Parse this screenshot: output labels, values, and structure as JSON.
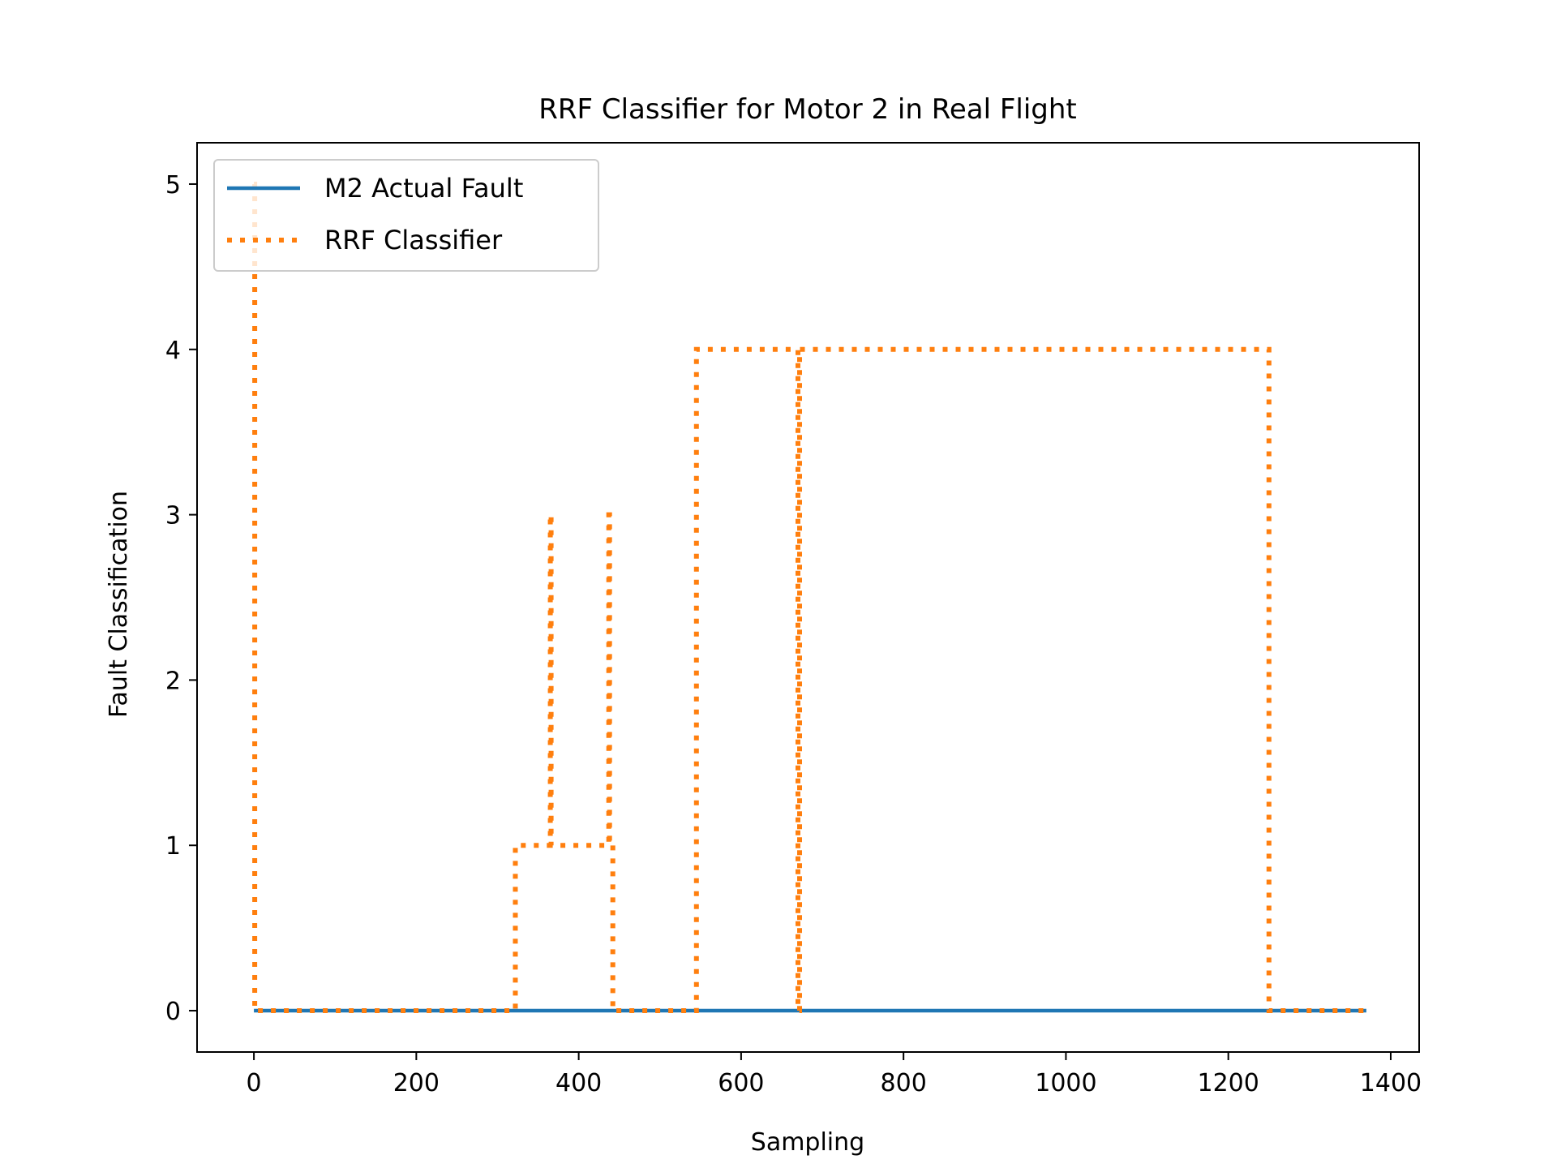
{
  "chart_data": {
    "type": "line",
    "title": "RRF Classifier for Motor 2 in Real Flight",
    "xlabel": "Sampling",
    "ylabel": "Fault Classification",
    "xlim": [
      -70,
      1435
    ],
    "ylim": [
      -0.25,
      5.25
    ],
    "xticks": [
      0,
      200,
      400,
      600,
      800,
      1000,
      1200,
      1400
    ],
    "xtick_labels": [
      "0",
      "200",
      "400",
      "600",
      "800",
      "1000",
      "1200",
      "1400"
    ],
    "yticks": [
      0,
      1,
      2,
      3,
      4,
      5
    ],
    "ytick_labels": [
      "0",
      "1",
      "2",
      "3",
      "4",
      "5"
    ],
    "grid": false,
    "legend_position": "upper-left",
    "series": [
      {
        "name": "M2 Actual Fault",
        "style": "solid",
        "color": "#1f77b4",
        "x": [
          0,
          1370
        ],
        "y": [
          0,
          0
        ]
      },
      {
        "name": "RRF Classifier",
        "style": "dotted",
        "color": "#ff7f0e",
        "x": [
          0,
          1,
          1,
          322,
          322,
          365,
          365,
          366,
          366,
          437,
          437,
          438,
          438,
          442,
          442,
          545,
          545,
          670,
          670,
          672,
          672,
          1250,
          1250,
          1370
        ],
        "y": [
          5,
          5,
          0,
          0,
          1,
          1,
          3,
          3,
          1,
          1,
          3,
          3,
          1,
          1,
          0,
          0,
          4,
          4,
          0,
          0,
          4,
          4,
          0,
          0
        ]
      }
    ]
  }
}
